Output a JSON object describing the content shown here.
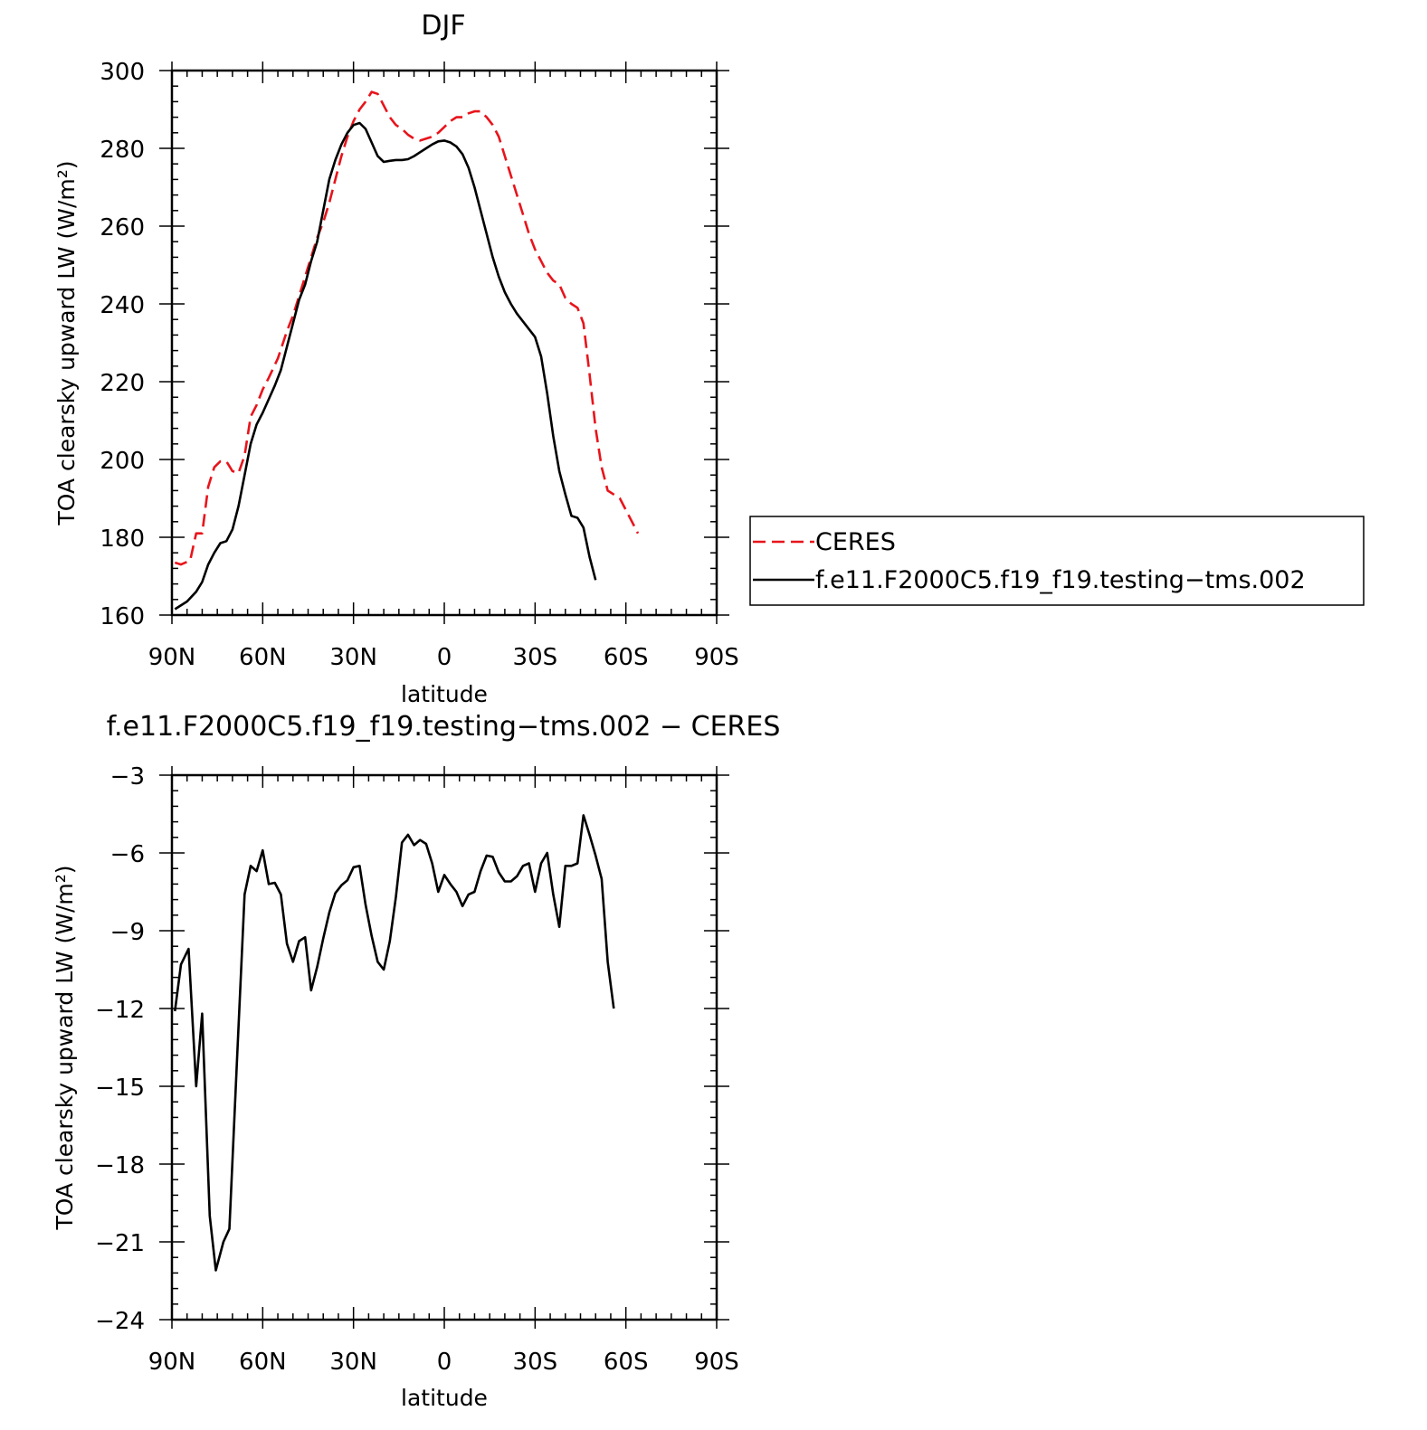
{
  "chart_data": [
    {
      "type": "line",
      "title": "DJF",
      "xlabel": "latitude",
      "ylabel": "TOA clearsky upward LW (W/m²)",
      "xlim": [
        90,
        -90
      ],
      "ylim": [
        160,
        300
      ],
      "xticks": [
        90,
        60,
        30,
        0,
        -30,
        -60,
        -90
      ],
      "xtick_labels": [
        "90N",
        "60N",
        "30N",
        "0",
        "30S",
        "60S",
        "90S"
      ],
      "yticks": [
        160,
        180,
        200,
        220,
        240,
        260,
        280,
        300
      ],
      "legend": "right",
      "series": [
        {
          "name": "CERES",
          "color": "#e8141b",
          "dash": "dashed",
          "points": [
            [
              89,
              173.5
            ],
            [
              87,
              173
            ],
            [
              84,
              174
            ],
            [
              82,
              181
            ],
            [
              80,
              181
            ],
            [
              78,
              193
            ],
            [
              76,
              198
            ],
            [
              74,
              199.5
            ],
            [
              72,
              199.5
            ],
            [
              70,
              197
            ],
            [
              68,
              196.5
            ],
            [
              66,
              201
            ],
            [
              64,
              211
            ],
            [
              62,
              214
            ],
            [
              60,
              218
            ],
            [
              58,
              221
            ],
            [
              55,
              226
            ],
            [
              52,
              233
            ],
            [
              50,
              237
            ],
            [
              48,
              242
            ],
            [
              46,
              247
            ],
            [
              44,
              252
            ],
            [
              42,
              257
            ],
            [
              40,
              261
            ],
            [
              38,
              266
            ],
            [
              36,
              272
            ],
            [
              34,
              278
            ],
            [
              32,
              283
            ],
            [
              30,
              287
            ],
            [
              28,
              290
            ],
            [
              26,
              292
            ],
            [
              24,
              294.5
            ],
            [
              22,
              294
            ],
            [
              20,
              291
            ],
            [
              18,
              288
            ],
            [
              16,
              286
            ],
            [
              14,
              285
            ],
            [
              12,
              283.5
            ],
            [
              10,
              282.5
            ],
            [
              8,
              282
            ],
            [
              6,
              282.5
            ],
            [
              4,
              283
            ],
            [
              2,
              284
            ],
            [
              0,
              285.5
            ],
            [
              -2,
              287
            ],
            [
              -4,
              288
            ],
            [
              -6,
              288
            ],
            [
              -8,
              289
            ],
            [
              -10,
              289.5
            ],
            [
              -12,
              289.5
            ],
            [
              -14,
              288
            ],
            [
              -16,
              286
            ],
            [
              -18,
              283
            ],
            [
              -20,
              278
            ],
            [
              -22,
              273
            ],
            [
              -24,
              268
            ],
            [
              -26,
              263
            ],
            [
              -28,
              258
            ],
            [
              -30,
              254
            ],
            [
              -32,
              251
            ],
            [
              -34,
              248
            ],
            [
              -36,
              246
            ],
            [
              -38,
              245
            ],
            [
              -40,
              241.5
            ],
            [
              -42,
              240
            ],
            [
              -44,
              239
            ],
            [
              -46,
              235
            ],
            [
              -48,
              222
            ],
            [
              -50,
              208
            ],
            [
              -52,
              198
            ],
            [
              -54,
              192
            ],
            [
              -56,
              191
            ],
            [
              -58,
              190
            ],
            [
              -60,
              187
            ],
            [
              -62,
              184
            ],
            [
              -64,
              181
            ]
          ]
        },
        {
          "name": "f.e11.F2000C5.f19_f19.testing−tms.002",
          "color": "#000000",
          "dash": "solid",
          "points": [
            [
              89,
              161.5
            ],
            [
              85,
              163.5
            ],
            [
              82,
              166
            ],
            [
              80,
              168.5
            ],
            [
              78,
              173
            ],
            [
              76,
              176
            ],
            [
              74,
              178.5
            ],
            [
              72,
              179
            ],
            [
              70,
              182
            ],
            [
              68,
              188
            ],
            [
              66,
              196
            ],
            [
              64,
              204
            ],
            [
              62,
              209
            ],
            [
              60,
              212
            ],
            [
              58,
              215.5
            ],
            [
              56,
              219
            ],
            [
              54,
              223
            ],
            [
              52,
              229
            ],
            [
              50,
              235
            ],
            [
              48,
              241
            ],
            [
              46,
              245
            ],
            [
              44,
              251
            ],
            [
              42,
              256
            ],
            [
              40,
              264
            ],
            [
              38,
              272
            ],
            [
              36,
              277
            ],
            [
              34,
              281
            ],
            [
              32,
              284
            ],
            [
              30,
              286
            ],
            [
              28,
              286.5
            ],
            [
              26,
              285
            ],
            [
              24,
              281.5
            ],
            [
              22,
              278
            ],
            [
              20,
              276.5
            ],
            [
              18,
              276.8
            ],
            [
              16,
              277
            ],
            [
              14,
              277
            ],
            [
              12,
              277.2
            ],
            [
              10,
              278
            ],
            [
              8,
              279
            ],
            [
              6,
              280
            ],
            [
              4,
              281
            ],
            [
              2,
              281.8
            ],
            [
              0,
              282
            ],
            [
              -2,
              281.5
            ],
            [
              -4,
              280.5
            ],
            [
              -6,
              278.5
            ],
            [
              -8,
              275
            ],
            [
              -10,
              270
            ],
            [
              -12,
              264
            ],
            [
              -14,
              258
            ],
            [
              -16,
              252
            ],
            [
              -18,
              247
            ],
            [
              -20,
              243
            ],
            [
              -22,
              240
            ],
            [
              -24,
              237.5
            ],
            [
              -26,
              235.5
            ],
            [
              -28,
              233.5
            ],
            [
              -30,
              231.5
            ],
            [
              -32,
              226.5
            ],
            [
              -34,
              217
            ],
            [
              -36,
              206
            ],
            [
              -38,
              197
            ],
            [
              -40,
              191
            ],
            [
              -42,
              185.5
            ],
            [
              -44,
              185
            ],
            [
              -46,
              182.5
            ],
            [
              -48,
              175
            ],
            [
              -50,
              169
            ]
          ]
        }
      ]
    },
    {
      "type": "line",
      "title": "f.e11.F2000C5.f19_f19.testing−tms.002 − CERES",
      "xlabel": "latitude",
      "ylabel": "TOA clearsky upward LW (W/m²)",
      "xlim": [
        90,
        -90
      ],
      "ylim": [
        -24,
        -3
      ],
      "xticks": [
        90,
        60,
        30,
        0,
        -30,
        -60,
        -90
      ],
      "xtick_labels": [
        "90N",
        "60N",
        "30N",
        "0",
        "30S",
        "60S",
        "90S"
      ],
      "yticks": [
        -24,
        -21,
        -18,
        -15,
        -12,
        -9,
        -6,
        -3
      ],
      "ytick_labels": [
        "−24",
        "−21",
        "−18",
        "−15",
        "−12",
        "−9",
        "−6",
        "−3"
      ],
      "series": [
        {
          "color": "#000000",
          "points": [
            [
              89,
              -12.1
            ],
            [
              87,
              -10.3
            ],
            [
              84.5,
              -9.7
            ],
            [
              82,
              -15
            ],
            [
              80,
              -12.2
            ],
            [
              77.5,
              -20
            ],
            [
              75.5,
              -22.1
            ],
            [
              73,
              -21
            ],
            [
              71,
              -20.5
            ],
            [
              68.5,
              -14
            ],
            [
              66,
              -7.6
            ],
            [
              64,
              -6.5
            ],
            [
              62,
              -6.7
            ],
            [
              60,
              -5.9
            ],
            [
              58,
              -7.2
            ],
            [
              56,
              -7.15
            ],
            [
              54,
              -7.6
            ],
            [
              52,
              -9.5
            ],
            [
              50,
              -10.2
            ],
            [
              48,
              -9.4
            ],
            [
              46,
              -9.25
            ],
            [
              44,
              -11.3
            ],
            [
              42,
              -10.4
            ],
            [
              40,
              -9.3
            ],
            [
              38,
              -8.3
            ],
            [
              36,
              -7.55
            ],
            [
              34,
              -7.25
            ],
            [
              32,
              -7.05
            ],
            [
              30,
              -6.55
            ],
            [
              28,
              -6.5
            ],
            [
              26,
              -8.0
            ],
            [
              24,
              -9.2
            ],
            [
              22,
              -10.2
            ],
            [
              20,
              -10.5
            ],
            [
              18,
              -9.4
            ],
            [
              16,
              -7.7
            ],
            [
              14,
              -5.6
            ],
            [
              12,
              -5.3
            ],
            [
              10,
              -5.7
            ],
            [
              8,
              -5.5
            ],
            [
              6,
              -5.65
            ],
            [
              4,
              -6.4
            ],
            [
              2,
              -7.5
            ],
            [
              0,
              -6.85
            ],
            [
              -2,
              -7.2
            ],
            [
              -4,
              -7.5
            ],
            [
              -6,
              -8.05
            ],
            [
              -8,
              -7.6
            ],
            [
              -10,
              -7.5
            ],
            [
              -12,
              -6.7
            ],
            [
              -14,
              -6.1
            ],
            [
              -16,
              -6.15
            ],
            [
              -18,
              -6.75
            ],
            [
              -20,
              -7.1
            ],
            [
              -22,
              -7.1
            ],
            [
              -24,
              -6.9
            ],
            [
              -26,
              -6.5
            ],
            [
              -28,
              -6.4
            ],
            [
              -30,
              -7.5
            ],
            [
              -32,
              -6.4
            ],
            [
              -34,
              -6.0
            ],
            [
              -36,
              -7.6
            ],
            [
              -38,
              -8.85
            ],
            [
              -40,
              -6.5
            ],
            [
              -42,
              -6.5
            ],
            [
              -44,
              -6.4
            ],
            [
              -46,
              -4.55
            ],
            [
              -48,
              -5.3
            ],
            [
              -50,
              -6.1
            ],
            [
              -52,
              -7.0
            ],
            [
              -54,
              -10.2
            ],
            [
              -56,
              -12.0
            ]
          ]
        }
      ]
    }
  ]
}
